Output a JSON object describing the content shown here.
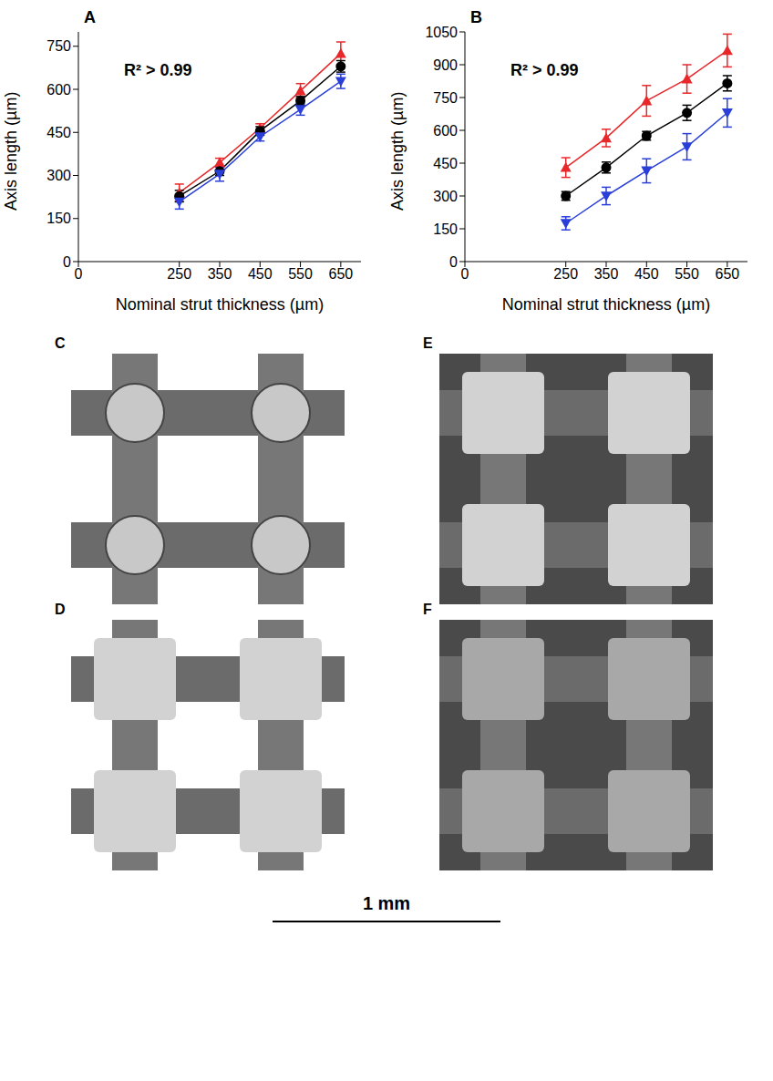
{
  "chart_data": [
    {
      "type": "line",
      "panel": "A",
      "annotation": "R² > 0.99",
      "x_label": "Nominal strut thickness (µm)",
      "y_label": "Axis length (µm)",
      "x": [
        250,
        350,
        450,
        550,
        650
      ],
      "xlim": [
        0,
        700
      ],
      "xticks": [
        0,
        250,
        350,
        450,
        550,
        650
      ],
      "ylim": [
        0,
        800
      ],
      "yticks": [
        0,
        150,
        300,
        450,
        600,
        750
      ],
      "series": [
        {
          "color": "#e8272a",
          "marker": "triangle",
          "line_style": "solid",
          "values": [
            240,
            345,
            465,
            595,
            725
          ],
          "errors": [
            30,
            15,
            15,
            25,
            40
          ]
        },
        {
          "color": "#000000",
          "marker": "circle",
          "line_style": "solid",
          "values": [
            228,
            315,
            455,
            560,
            680
          ],
          "errors": [
            20,
            15,
            15,
            15,
            20
          ]
        },
        {
          "color": "#2a3fd8",
          "marker": "triangle-down",
          "line_style": "solid",
          "values": [
            208,
            305,
            435,
            530,
            628
          ],
          "errors": [
            25,
            25,
            15,
            20,
            25
          ]
        }
      ]
    },
    {
      "type": "line",
      "panel": "B",
      "annotation": "R² > 0.99",
      "x_label": "Nominal strut thickness (µm)",
      "y_label": "Axis length (µm)",
      "x": [
        250,
        350,
        450,
        550,
        650
      ],
      "xlim": [
        0,
        700
      ],
      "xticks": [
        0,
        250,
        350,
        450,
        550,
        650
      ],
      "ylim": [
        0,
        1050
      ],
      "yticks": [
        0,
        150,
        300,
        450,
        600,
        750,
        900,
        1050
      ],
      "series": [
        {
          "color": "#e8272a",
          "marker": "triangle",
          "line_style": "solid",
          "values": [
            430,
            565,
            735,
            835,
            965
          ],
          "errors": [
            45,
            40,
            70,
            65,
            75
          ]
        },
        {
          "color": "#000000",
          "marker": "circle",
          "line_style": "solid",
          "values": [
            300,
            430,
            575,
            680,
            815
          ],
          "errors": [
            20,
            25,
            20,
            35,
            35
          ]
        },
        {
          "color": "#2a3fd8",
          "marker": "triangle-down",
          "line_style": "solid",
          "values": [
            175,
            300,
            415,
            525,
            680
          ],
          "errors": [
            30,
            40,
            55,
            60,
            65
          ]
        }
      ]
    }
  ],
  "images": [
    {
      "label": "C"
    },
    {
      "label": "D"
    },
    {
      "label": "E"
    },
    {
      "label": "F"
    }
  ],
  "scale_bar": "1 mm"
}
